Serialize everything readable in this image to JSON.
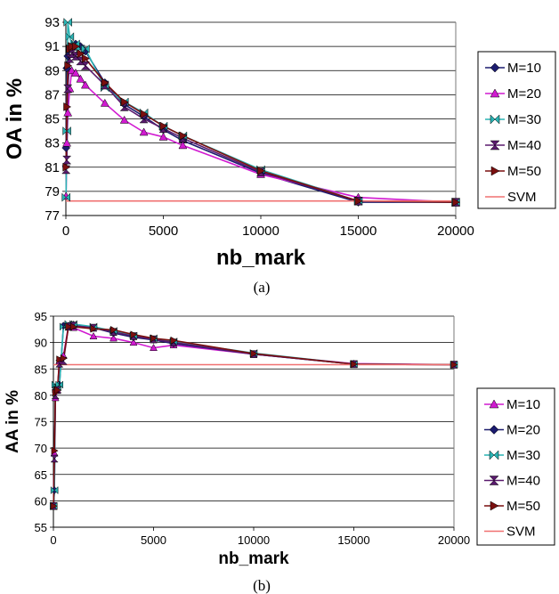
{
  "chart_data": [
    {
      "type": "line",
      "caption": "(a)",
      "xlabel": "nb_mark",
      "ylabel": "OA in %",
      "xlim": [
        0,
        20000
      ],
      "ylim": [
        77,
        93
      ],
      "xticks": [
        0,
        5000,
        10000,
        15000,
        20000
      ],
      "yticks": [
        77,
        79,
        81,
        83,
        85,
        87,
        89,
        91,
        93
      ],
      "grid": "horizontal",
      "legend_position": "right",
      "series": [
        {
          "name": "M=10",
          "color": "#1c1c6e",
          "marker": "diamond",
          "x": [
            10,
            50,
            100,
            200,
            300,
            500,
            750,
            1000,
            2000,
            3000,
            4000,
            5000,
            6000,
            10000,
            15000,
            20000
          ],
          "y": [
            82.6,
            89.2,
            90.2,
            90.8,
            91.0,
            91.2,
            91.0,
            90.6,
            88.0,
            86.2,
            85.2,
            84.1,
            83.2,
            80.5,
            78.1,
            78.1
          ]
        },
        {
          "name": "M=20",
          "color": "#d11ad1",
          "marker": "triangle",
          "x": [
            10,
            50,
            100,
            200,
            300,
            500,
            750,
            1000,
            2000,
            3000,
            4000,
            5000,
            6000,
            10000,
            15000,
            20000
          ],
          "y": [
            78.6,
            83.0,
            85.5,
            87.5,
            89.0,
            88.8,
            88.3,
            87.8,
            86.3,
            84.9,
            83.9,
            83.5,
            82.8,
            80.4,
            78.5,
            78.1
          ]
        },
        {
          "name": "M=30",
          "color": "#2ab3b3",
          "marker": "bowtie",
          "x": [
            10,
            50,
            100,
            200,
            300,
            500,
            750,
            1000,
            2000,
            3000,
            4000,
            5000,
            6000,
            10000,
            15000,
            20000
          ],
          "y": [
            78.5,
            84.0,
            93.0,
            91.8,
            91.0,
            91.2,
            90.8,
            90.8,
            87.6,
            86.4,
            85.5,
            84.4,
            83.6,
            80.8,
            78.2,
            78.1
          ]
        },
        {
          "name": "M=40",
          "color": "#5a1a6e",
          "marker": "hourglass",
          "x": [
            10,
            50,
            100,
            200,
            300,
            500,
            750,
            1000,
            2000,
            3000,
            4000,
            5000,
            6000,
            10000,
            15000,
            20000
          ],
          "y": [
            80.8,
            81.6,
            87.5,
            90.0,
            90.4,
            90.2,
            89.8,
            89.4,
            87.8,
            86.0,
            85.0,
            84.2,
            83.4,
            80.6,
            78.2,
            78.1
          ]
        },
        {
          "name": "M=50",
          "color": "#7a0f0f",
          "marker": "arrow-right",
          "x": [
            10,
            50,
            100,
            200,
            300,
            500,
            750,
            1000,
            2000,
            3000,
            4000,
            5000,
            6000,
            10000,
            15000,
            20000
          ],
          "y": [
            81.0,
            86.0,
            89.4,
            90.8,
            91.0,
            91.0,
            90.4,
            90.0,
            88.0,
            86.4,
            85.4,
            84.4,
            83.6,
            80.7,
            78.2,
            78.1
          ]
        },
        {
          "name": "SVM",
          "color": "#f07070",
          "marker": "none",
          "x": [
            0,
            20000
          ],
          "y": [
            78.2,
            78.2
          ]
        }
      ]
    },
    {
      "type": "line",
      "caption": "(b)",
      "xlabel": "nb_mark",
      "ylabel": "AA in %",
      "xlim": [
        0,
        20000
      ],
      "ylim": [
        55,
        95
      ],
      "xticks": [
        0,
        5000,
        10000,
        15000,
        20000
      ],
      "yticks": [
        55,
        60,
        65,
        70,
        75,
        80,
        85,
        90,
        95
      ],
      "grid": "horizontal",
      "legend_position": "right",
      "series": [
        {
          "name": "M=10",
          "color": "#d11ad1",
          "marker": "triangle",
          "x": [
            10,
            50,
            100,
            200,
            300,
            500,
            750,
            1000,
            2000,
            3000,
            4000,
            5000,
            6000,
            10000,
            15000,
            20000
          ],
          "y": [
            59.0,
            69.0,
            79.5,
            81.0,
            86.5,
            87.5,
            93.2,
            92.8,
            91.2,
            90.8,
            90.0,
            89.0,
            89.5,
            87.8,
            86.0,
            85.8
          ]
        },
        {
          "name": "M=20",
          "color": "#1c1c6e",
          "marker": "diamond",
          "x": [
            10,
            50,
            100,
            200,
            300,
            500,
            750,
            1000,
            2000,
            3000,
            4000,
            5000,
            6000,
            10000,
            15000,
            20000
          ],
          "y": [
            59.0,
            62.0,
            81.0,
            81.5,
            82.0,
            93.2,
            93.2,
            93.4,
            92.8,
            91.8,
            91.0,
            90.5,
            89.8,
            87.8,
            85.9,
            85.8
          ]
        },
        {
          "name": "M=30",
          "color": "#2ab3b3",
          "marker": "bowtie",
          "x": [
            10,
            50,
            100,
            200,
            300,
            500,
            750,
            1000,
            2000,
            3000,
            4000,
            5000,
            6000,
            10000,
            15000,
            20000
          ],
          "y": [
            59.0,
            62.0,
            82.0,
            81.5,
            82.0,
            93.0,
            93.5,
            93.5,
            93.0,
            92.2,
            91.3,
            90.8,
            90.2,
            88.0,
            85.9,
            85.8
          ]
        },
        {
          "name": "M=40",
          "color": "#5a1a6e",
          "marker": "hourglass",
          "x": [
            10,
            50,
            100,
            200,
            300,
            500,
            750,
            1000,
            2000,
            3000,
            4000,
            5000,
            6000,
            10000,
            15000,
            20000
          ],
          "y": [
            59.0,
            68.0,
            80.0,
            81.0,
            86.0,
            86.5,
            93.0,
            93.2,
            92.8,
            92.0,
            91.2,
            90.6,
            90.0,
            87.8,
            85.9,
            85.8
          ]
        },
        {
          "name": "M=50",
          "color": "#7a0f0f",
          "marker": "arrow-right",
          "x": [
            10,
            50,
            100,
            200,
            300,
            500,
            750,
            1000,
            2000,
            3000,
            4000,
            5000,
            6000,
            10000,
            15000,
            20000
          ],
          "y": [
            59.0,
            69.5,
            80.5,
            81.0,
            86.8,
            87.0,
            93.0,
            93.0,
            92.6,
            92.4,
            91.5,
            90.8,
            90.4,
            87.9,
            85.9,
            85.8
          ]
        },
        {
          "name": "SVM",
          "color": "#f07070",
          "marker": "none",
          "x": [
            0,
            20000
          ],
          "y": [
            85.8,
            85.8
          ]
        }
      ]
    }
  ]
}
